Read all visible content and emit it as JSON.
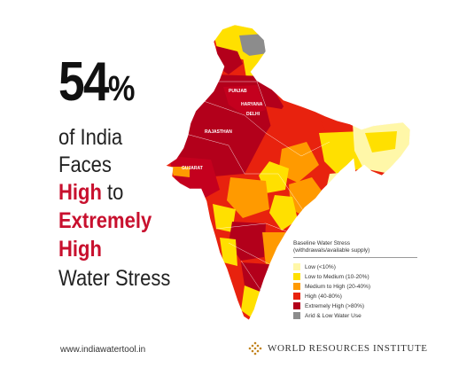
{
  "headline": {
    "percent_number": "54",
    "percent_sign": "%",
    "line_1": "of India",
    "line_2": "Faces",
    "line_3_highlight": "High",
    "line_3_rest": " to",
    "line_4": "Extremely",
    "line_5": "High",
    "line_6": "Water Stress"
  },
  "map": {
    "state_labels": [
      "PUNJAB",
      "HARYANA",
      "DELHI",
      "RAJASTHAN",
      "GUJARAT"
    ]
  },
  "legend": {
    "title": "Baseline Water Stress",
    "subtitle": "(withdrawals/available supply)",
    "items": [
      {
        "label": "Low (<10%)",
        "color": "#fff7a8"
      },
      {
        "label": "Low to Medium (10-20%)",
        "color": "#ffe000"
      },
      {
        "label": "Medium to High (20-40%)",
        "color": "#ff9a00"
      },
      {
        "label": "High (40-80%)",
        "color": "#e8220e"
      },
      {
        "label": "Extremely High (>80%)",
        "color": "#b3001b"
      },
      {
        "label": "Arid & Low Water Use",
        "color": "#8c8c8c"
      }
    ]
  },
  "footer": {
    "url": "www.indiawatertool.in",
    "organization": "World Resources Institute"
  },
  "colors": {
    "headline_red": "#c8102e",
    "text_dark": "#222222"
  }
}
